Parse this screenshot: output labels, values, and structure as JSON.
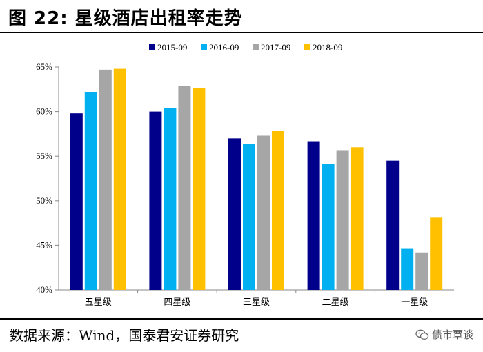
{
  "header": {
    "title": "图 22:  星级酒店出租率走势"
  },
  "footer": {
    "source": "数据来源：Wind，国泰君安证券研究",
    "watermark": "债市覃谈",
    "watermark_icon": "wechat-icon"
  },
  "chart_data": {
    "type": "bar",
    "title": "",
    "xlabel": "",
    "ylabel": "",
    "categories": [
      "五星级",
      "四星级",
      "三星级",
      "二星级",
      "一星级"
    ],
    "series": [
      {
        "name": "2015-09",
        "color": "#00008B",
        "values": [
          59.8,
          60.0,
          57.0,
          56.6,
          54.5
        ]
      },
      {
        "name": "2016-09",
        "color": "#00B0F0",
        "values": [
          62.2,
          60.4,
          56.4,
          54.1,
          44.6
        ]
      },
      {
        "name": "2017-09",
        "color": "#A6A6A6",
        "values": [
          64.7,
          62.9,
          57.3,
          55.6,
          44.2
        ]
      },
      {
        "name": "2018-09",
        "color": "#FFC000",
        "values": [
          64.8,
          62.6,
          57.8,
          56.0,
          48.1
        ]
      }
    ],
    "ylim": [
      40,
      65
    ],
    "yticks": [
      40,
      45,
      50,
      55,
      60,
      65
    ],
    "ytick_labels": [
      "40%",
      "45%",
      "50%",
      "55%",
      "60%",
      "65%"
    ],
    "grid": false,
    "legend": "top"
  }
}
